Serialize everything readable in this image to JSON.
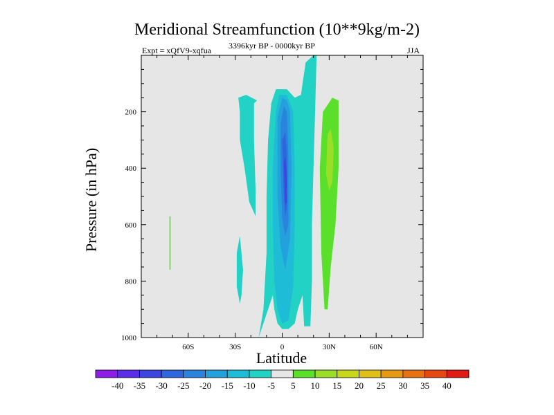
{
  "chart_data": {
    "type": "contour",
    "title": "Meridional Streamfunction (10**9kg/m-2)",
    "left_string": "Expt = xQfV9-xqfua",
    "center_string": "3396kyr BP - 0000kyr BP",
    "right_string": "JJA",
    "xlabel": "Latitude",
    "ylabel": "Pressure (in hPa)",
    "xlim": [
      -90,
      90
    ],
    "ylim": [
      1000,
      0
    ],
    "x_ticks": [
      {
        "value": -60,
        "label": "60S"
      },
      {
        "value": -30,
        "label": "30S"
      },
      {
        "value": 0,
        "label": "0"
      },
      {
        "value": 30,
        "label": "30N"
      },
      {
        "value": 60,
        "label": "60N"
      }
    ],
    "y_ticks": [
      {
        "value": 200,
        "label": "200"
      },
      {
        "value": 400,
        "label": "400"
      },
      {
        "value": 600,
        "label": "600"
      },
      {
        "value": 800,
        "label": "800"
      },
      {
        "value": 1000,
        "label": "1000"
      }
    ],
    "background_color": "#e6e6e6",
    "colorbar": {
      "labels": [
        "-40",
        "-35",
        "-30",
        "-25",
        "-20",
        "-15",
        "-10",
        "-5",
        "5",
        "10",
        "15",
        "20",
        "25",
        "30",
        "35",
        "40"
      ],
      "colors": [
        "#8d1ee6",
        "#5a2ee6",
        "#3c46e0",
        "#2f66de",
        "#2a84de",
        "#24a0dc",
        "#1ebcd6",
        "#22d2c4",
        "#e6e6e6",
        "#5ae02a",
        "#9ade28",
        "#c8d61e",
        "#e0c018",
        "#e69a14",
        "#e67214",
        "#e64814",
        "#e01a14"
      ]
    },
    "regions": [
      {
        "name": "neg-5-outer-band",
        "level": -5,
        "color": "#22d2c4",
        "points": [
          [
            -15,
            1000
          ],
          [
            -12,
            900
          ],
          [
            -10,
            700
          ],
          [
            -10,
            500
          ],
          [
            -9,
            300
          ],
          [
            -7,
            170
          ],
          [
            -4,
            120
          ],
          [
            3,
            120
          ],
          [
            8,
            150
          ],
          [
            12,
            140
          ],
          [
            13,
            100
          ],
          [
            15,
            25
          ],
          [
            20,
            0
          ],
          [
            22,
            0
          ],
          [
            21,
            200
          ],
          [
            20,
            400
          ],
          [
            19,
            600
          ],
          [
            19,
            800
          ],
          [
            18,
            960
          ],
          [
            14,
            960
          ],
          [
            13,
            850
          ],
          [
            10,
            900
          ],
          [
            8,
            950
          ],
          [
            4,
            970
          ],
          [
            0,
            970
          ],
          [
            -3,
            950
          ],
          [
            -5,
            900
          ],
          [
            -6,
            850
          ]
        ]
      },
      {
        "name": "neg-5-sh-upper",
        "level": -5,
        "color": "#22d2c4",
        "points": [
          [
            -28,
            150
          ],
          [
            -23,
            140
          ],
          [
            -16,
            160
          ],
          [
            -18,
            170
          ],
          [
            -18,
            300
          ],
          [
            -17,
            480
          ],
          [
            -17,
            570
          ],
          [
            -21,
            520
          ],
          [
            -24,
            400
          ],
          [
            -27,
            300
          ],
          [
            -27,
            200
          ]
        ]
      },
      {
        "name": "neg-5-sh-lower",
        "level": -5,
        "color": "#22d2c4",
        "points": [
          [
            -29,
            700
          ],
          [
            -27,
            640
          ],
          [
            -25,
            760
          ],
          [
            -26,
            850
          ],
          [
            -27,
            880
          ],
          [
            -29,
            820
          ]
        ]
      },
      {
        "name": "neg-10",
        "level": -10,
        "color": "#1ebcd6",
        "points": [
          [
            -4,
            200
          ],
          [
            -2,
            140
          ],
          [
            3,
            140
          ],
          [
            7,
            200
          ],
          [
            8,
            400
          ],
          [
            8,
            600
          ],
          [
            7,
            820
          ],
          [
            4,
            940
          ],
          [
            0,
            950
          ],
          [
            -3,
            900
          ],
          [
            -5,
            800
          ],
          [
            -6,
            600
          ],
          [
            -6,
            400
          ]
        ]
      },
      {
        "name": "neg-15",
        "level": -15,
        "color": "#24a0dc",
        "points": [
          [
            -3,
            220
          ],
          [
            0,
            150
          ],
          [
            3,
            160
          ],
          [
            5,
            200
          ],
          [
            6,
            400
          ],
          [
            5,
            650
          ],
          [
            2,
            760
          ],
          [
            -1,
            680
          ],
          [
            -3,
            500
          ]
        ]
      },
      {
        "name": "neg-20",
        "level": -20,
        "color": "#2a84de",
        "points": [
          [
            -1,
            240
          ],
          [
            1,
            180
          ],
          [
            3,
            200
          ],
          [
            4,
            350
          ],
          [
            4,
            600
          ],
          [
            2,
            640
          ],
          [
            0,
            580
          ],
          [
            -1,
            400
          ]
        ]
      },
      {
        "name": "neg-25",
        "level": -25,
        "color": "#2f66de",
        "points": [
          [
            0,
            300
          ],
          [
            2,
            270
          ],
          [
            3,
            350
          ],
          [
            3,
            540
          ],
          [
            2,
            570
          ],
          [
            1,
            500
          ]
        ]
      },
      {
        "name": "neg-30",
        "level": -30,
        "color": "#3c46e0",
        "points": [
          [
            1,
            380
          ],
          [
            2,
            360
          ],
          [
            3,
            420
          ],
          [
            3,
            520
          ],
          [
            2,
            530
          ]
        ]
      },
      {
        "name": "pos-5-band",
        "level": 5,
        "color": "#5ae02a",
        "points": [
          [
            26,
            200
          ],
          [
            32,
            150
          ],
          [
            36,
            160
          ],
          [
            36,
            400
          ],
          [
            34,
            600
          ],
          [
            31,
            750
          ],
          [
            29,
            900
          ],
          [
            27,
            900
          ],
          [
            25,
            700
          ],
          [
            24,
            400
          ]
        ]
      },
      {
        "name": "pos-10-core",
        "level": 10,
        "color": "#9ade28",
        "points": [
          [
            29,
            280
          ],
          [
            31,
            260
          ],
          [
            33,
            330
          ],
          [
            32,
            450
          ],
          [
            30,
            480
          ],
          [
            28,
            420
          ]
        ]
      },
      {
        "name": "pos-5-sh-sliver",
        "level": 5,
        "color": "#5ae02a",
        "points": [
          [
            -72,
            570
          ],
          [
            -71.3,
            570
          ],
          [
            -71.3,
            760
          ],
          [
            -72,
            760
          ]
        ]
      }
    ]
  }
}
